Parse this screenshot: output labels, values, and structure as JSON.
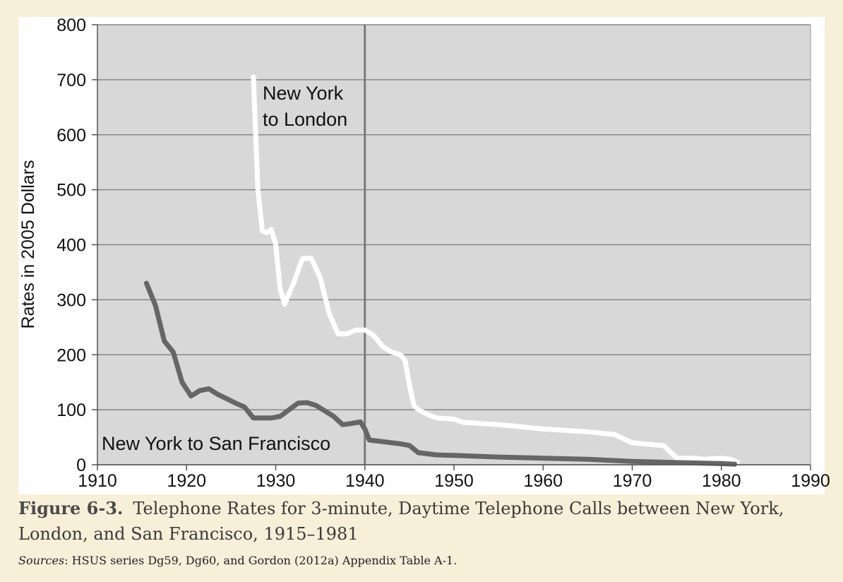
{
  "chart_data": {
    "type": "line",
    "ylabel": "Rates in 2005 Dollars",
    "xlim": [
      1910,
      1990
    ],
    "ylim": [
      0,
      800
    ],
    "xticks": [
      1910,
      1920,
      1930,
      1940,
      1950,
      1960,
      1970,
      1980,
      1990
    ],
    "yticks": [
      0,
      100,
      200,
      300,
      400,
      500,
      600,
      700,
      800
    ],
    "grid": true,
    "reference_line_x": 1940,
    "series": [
      {
        "name": "New York to London",
        "label_lines": [
          "New York",
          "to London"
        ],
        "color": "#ffffff",
        "x": [
          1927.5,
          1928.0,
          1928.5,
          1929.0,
          1929.5,
          1930.0,
          1930.5,
          1931.0,
          1932.0,
          1933.0,
          1934.0,
          1935.0,
          1936.0,
          1937.0,
          1938.0,
          1939.0,
          1940.0,
          1941.0,
          1942.0,
          1943.0,
          1944.0,
          1944.5,
          1945.0,
          1945.5,
          1946.0,
          1947.0,
          1948.0,
          1950.0,
          1951.0,
          1955.0,
          1957.0,
          1960.0,
          1965.0,
          1968.0,
          1970.0,
          1972.0,
          1973.5,
          1974.5,
          1975.0,
          1977.0,
          1978.0,
          1980.0,
          1981.0,
          1981.8
        ],
        "y": [
          705,
          500,
          425,
          422,
          428,
          400,
          320,
          292,
          330,
          375,
          375,
          340,
          275,
          238,
          238,
          245,
          245,
          235,
          215,
          205,
          200,
          190,
          145,
          108,
          100,
          92,
          85,
          83,
          77,
          73,
          70,
          65,
          60,
          55,
          40,
          37,
          35,
          20,
          12,
          12,
          10,
          12,
          10,
          5
        ]
      },
      {
        "name": "New York to San Francisco",
        "label_lines": [
          "New York to San Francisco"
        ],
        "color": "#666666",
        "x": [
          1915.5,
          1916.5,
          1917.5,
          1918.5,
          1919.5,
          1920.5,
          1921.5,
          1922.5,
          1923.5,
          1924.5,
          1925.5,
          1926.5,
          1927.5,
          1928.5,
          1929.5,
          1930.5,
          1931.5,
          1932.5,
          1933.5,
          1934.5,
          1935.5,
          1936.5,
          1937.5,
          1938.5,
          1939.5,
          1940.0,
          1940.5,
          1942.0,
          1944.0,
          1945.0,
          1946.0,
          1948.0,
          1950.0,
          1955.0,
          1960.0,
          1965.0,
          1970.0,
          1975.0,
          1980.0,
          1981.5
        ],
        "y": [
          330,
          290,
          225,
          205,
          150,
          125,
          135,
          138,
          128,
          120,
          112,
          105,
          85,
          85,
          85,
          88,
          100,
          112,
          113,
          108,
          98,
          88,
          73,
          75,
          78,
          65,
          45,
          42,
          38,
          35,
          22,
          18,
          17,
          14,
          12,
          10,
          6,
          4,
          2,
          1
        ]
      }
    ]
  },
  "caption": {
    "label": "Figure 6-3.",
    "text": "Telephone Rates for 3-minute, Daytime Telephone Calls between New York, London, and San Francisco, 1915–1981",
    "sources_label": "Sources",
    "sources_text": ": HSUS series Dg59, Dg60, and Gordon (2012a) Appendix Table A-1."
  },
  "colors": {
    "page_background": "#f8efd9",
    "plot_background": "#d8d8d8",
    "gridline": "#888888",
    "reference_line": "#7a7a7a"
  }
}
